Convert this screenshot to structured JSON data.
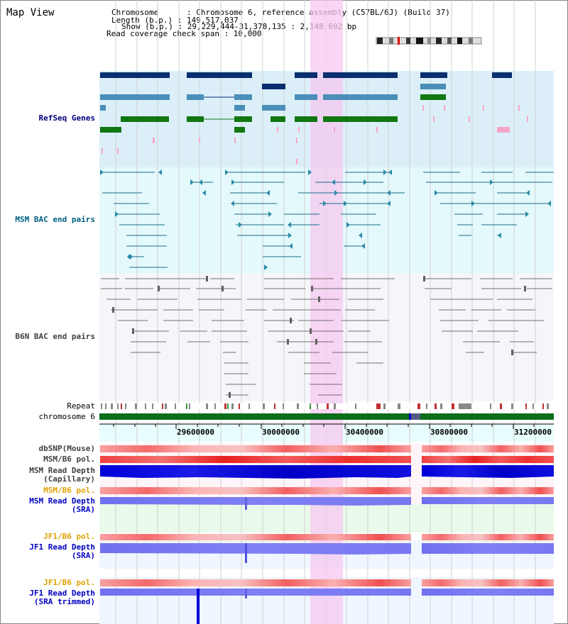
{
  "page": {
    "title": "Map View"
  },
  "info": {
    "chromosome_line": "Chromosome      : Chromosome 6, reference assembly (C57BL/6J) (Build 37)",
    "length_line": "Length (b.p.) : 149,517,037",
    "show_line": "Show (b.p.) : 29,229,444-31,378,135 : 2,148,692 bp",
    "span_line": "Read coverage check span : 10,000"
  },
  "tracks": {
    "refseq": "RefSeq Genes",
    "msm_bac": "MSM BAC end pairs",
    "b6n_bac": "B6N BAC end pairs",
    "repeat": "Repeat",
    "chromosome": "chromosome 6",
    "dbsnp": "dbSNP(Mouse)",
    "msm_b6_pol_1": "MSM/B6 pol.",
    "msm_depth_cap_1": "MSM Read Depth",
    "msm_depth_cap_2": "(Capillary)",
    "msm_b6_pol_2": "MSM/B6 pol.",
    "msm_depth_sra_1": "MSM Read Depth",
    "msm_depth_sra_2": "(SRA)",
    "jf1_b6_pol_1": "JF1/B6 pol.",
    "jf1_depth_sra_1": "JF1 Read Depth",
    "jf1_depth_sra_2": "(SRA)",
    "jf1_b6_pol_2": "JF1/B6 pol.",
    "jf1_depth_trim_1": "JF1 Read Depth",
    "jf1_depth_trim_2": "(SRA trimmed)"
  },
  "axis": {
    "ticks": [
      "29600000",
      "30000000",
      "30400000",
      "30800000",
      "31200000"
    ]
  },
  "colors": {
    "refseq_label": "#000080",
    "msm_label": "#006080",
    "b6n_label": "#404040",
    "orange_label": "#e0a000",
    "blue_label": "#0000c0",
    "highlight": "#f8d8f4"
  }
}
